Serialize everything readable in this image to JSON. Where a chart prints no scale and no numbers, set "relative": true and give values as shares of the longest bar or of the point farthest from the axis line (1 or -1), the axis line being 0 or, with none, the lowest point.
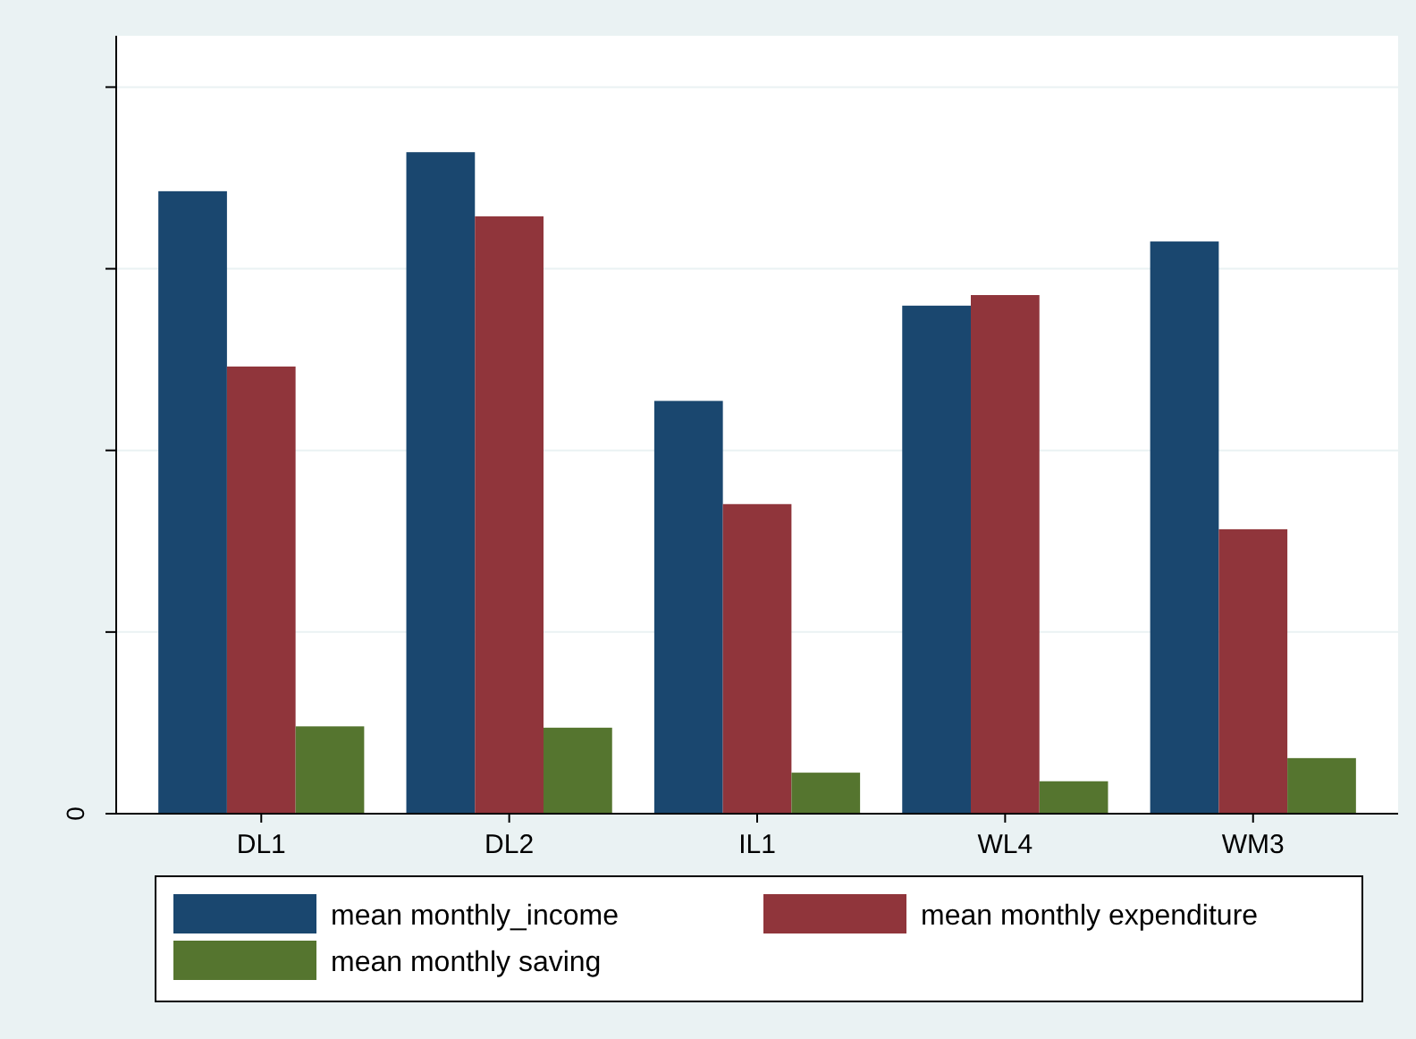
{
  "chart_data": {
    "type": "bar",
    "relative": true,
    "categories": [
      "DL1",
      "DL2",
      "IL1",
      "WL4",
      "WM3"
    ],
    "series": [
      {
        "name": "mean  monthly_income",
        "color": "#1a476f",
        "values": [
          0.941,
          1,
          0.624,
          0.768,
          0.865
        ]
      },
      {
        "name": "mean monthly expenditure",
        "color": "#90353b",
        "values": [
          0.676,
          0.903,
          0.468,
          0.784,
          0.43
        ]
      },
      {
        "name": "mean monthly saving",
        "color": "#55752f",
        "values": [
          0.132,
          0.13,
          0.062,
          0.049,
          0.084
        ]
      }
    ],
    "annotations": [
      "0"
    ],
    "grid": "y",
    "legend": "bottom"
  }
}
